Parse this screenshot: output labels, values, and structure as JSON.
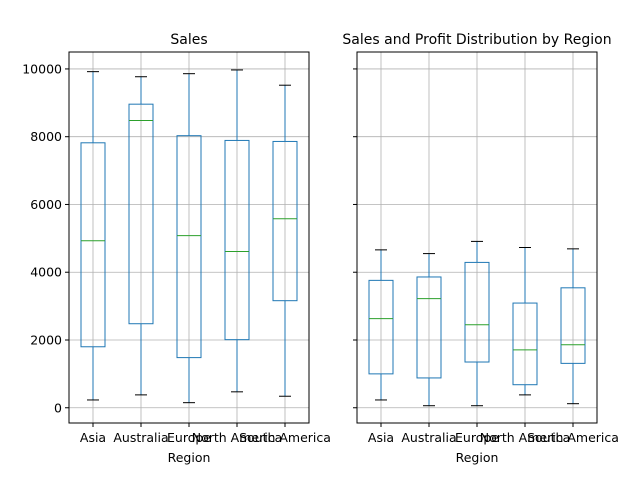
{
  "chart_data": [
    {
      "type": "box",
      "title": "Sales",
      "xlabel": "Region",
      "ylabel": "",
      "ylim": [
        -450,
        10500
      ],
      "yticks": [
        0,
        2000,
        4000,
        6000,
        8000,
        10000
      ],
      "grid": true,
      "categories": [
        "Asia",
        "Australia",
        "Europe",
        "North America",
        "South America"
      ],
      "boxes": [
        {
          "whisker_low": 230,
          "q1": 1800,
          "median": 4930,
          "q3": 7820,
          "whisker_high": 9920
        },
        {
          "whisker_low": 380,
          "q1": 2480,
          "median": 8480,
          "q3": 8960,
          "whisker_high": 9770
        },
        {
          "whisker_low": 150,
          "q1": 1480,
          "median": 5080,
          "q3": 8030,
          "whisker_high": 9860
        },
        {
          "whisker_low": 470,
          "q1": 2010,
          "median": 4610,
          "q3": 7890,
          "whisker_high": 9970
        },
        {
          "whisker_low": 340,
          "q1": 3160,
          "median": 5580,
          "q3": 7860,
          "whisker_high": 9520
        }
      ]
    },
    {
      "type": "box",
      "title": "Sales and Profit Distribution by Region",
      "xlabel": "Region",
      "ylabel": "",
      "ylim": [
        -450,
        10500
      ],
      "yticks": [
        0,
        2000,
        4000,
        6000,
        8000,
        10000
      ],
      "grid": true,
      "categories": [
        "Asia",
        "Australia",
        "Europe",
        "North America",
        "South America"
      ],
      "boxes": [
        {
          "whisker_low": 230,
          "q1": 1000,
          "median": 2630,
          "q3": 3760,
          "whisker_high": 4660
        },
        {
          "whisker_low": 60,
          "q1": 880,
          "median": 3220,
          "q3": 3860,
          "whisker_high": 4550
        },
        {
          "whisker_low": 60,
          "q1": 1350,
          "median": 2450,
          "q3": 4290,
          "whisker_high": 4910
        },
        {
          "whisker_low": 380,
          "q1": 680,
          "median": 1710,
          "q3": 3090,
          "whisker_high": 4730
        },
        {
          "whisker_low": 120,
          "q1": 1310,
          "median": 1860,
          "q3": 3540,
          "whisker_high": 4690
        }
      ]
    }
  ],
  "colors": {
    "box": "#1f77b4",
    "median": "#2ca02c",
    "grid": "#b0b0b0",
    "axis": "#000000"
  }
}
